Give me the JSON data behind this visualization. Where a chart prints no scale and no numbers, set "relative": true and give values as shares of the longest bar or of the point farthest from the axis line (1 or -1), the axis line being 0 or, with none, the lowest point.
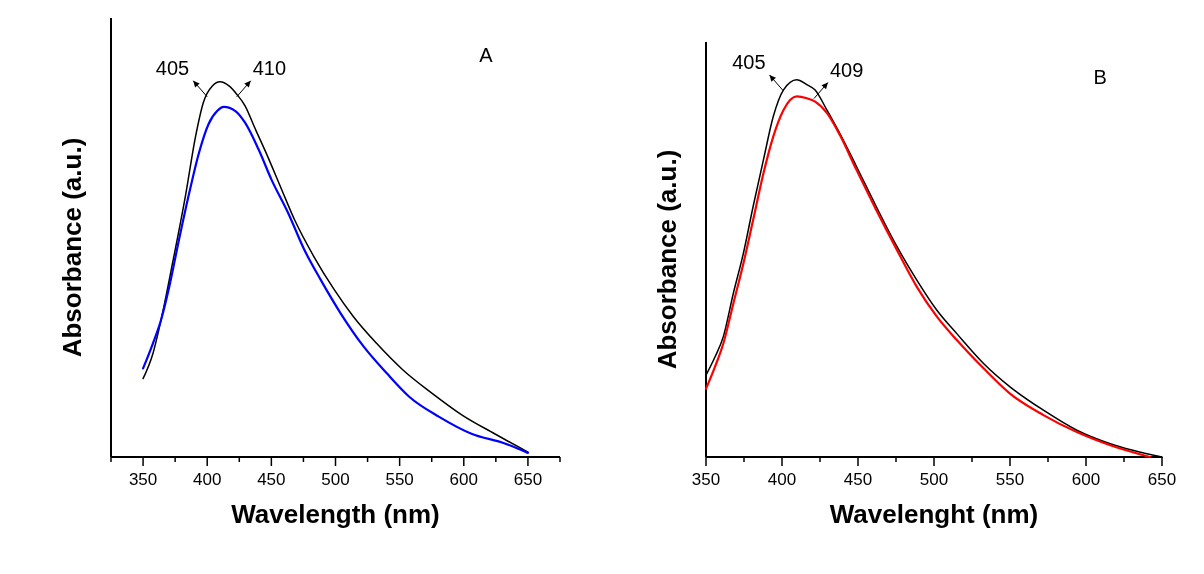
{
  "chart_data": [
    {
      "type": "line",
      "relative": true,
      "xlabel": "Wavelength (nm)",
      "ylabel": "Absorbance (a.u.)",
      "xlim": [
        325,
        675
      ],
      "xticks": [
        {
          "value": 325,
          "label": null
        },
        350,
        {
          "value": 375,
          "label": null
        },
        400,
        {
          "value": 425,
          "label": null
        },
        450,
        {
          "value": 475,
          "label": null
        },
        500,
        {
          "value": 525,
          "label": null
        },
        550,
        {
          "value": 575,
          "label": null
        },
        600,
        {
          "value": 625,
          "label": null
        },
        650,
        {
          "value": 675,
          "label": null
        }
      ],
      "marker": "none",
      "line_style": "solid",
      "annotations": [
        {
          "text": "405",
          "x": 400,
          "y": 0.96
        },
        {
          "text": "410",
          "x": 423,
          "y": 0.96
        },
        "A"
      ],
      "series": [
        {
          "color": "#000000",
          "x": [
            350,
            357.7,
            364,
            373,
            383,
            391,
            397,
            404,
            410,
            417,
            423,
            429.5,
            437,
            447,
            458,
            468,
            483,
            499,
            514,
            532,
            552.6,
            575.6,
            599,
            624,
            650
          ],
          "values": [
            0.209,
            0.276,
            0.365,
            0.517,
            0.695,
            0.856,
            0.945,
            0.989,
            1.0,
            0.989,
            0.967,
            0.936,
            0.878,
            0.802,
            0.713,
            0.633,
            0.535,
            0.446,
            0.374,
            0.303,
            0.232,
            0.169,
            0.111,
            0.062,
            0.013
          ]
        },
        {
          "color": "#0000ff",
          "x": [
            350,
            357.7,
            364,
            370.5,
            378,
            386,
            393.6,
            401,
            407.7,
            413,
            422,
            429.5,
            440,
            450,
            463,
            475.6,
            488.5,
            504,
            522,
            540,
            557.7,
            580.8,
            606,
            632,
            650
          ],
          "values": [
            0.236,
            0.303,
            0.365,
            0.455,
            0.579,
            0.704,
            0.811,
            0.887,
            0.922,
            0.933,
            0.922,
            0.891,
            0.82,
            0.74,
            0.651,
            0.553,
            0.472,
            0.383,
            0.294,
            0.223,
            0.16,
            0.107,
            0.062,
            0.036,
            0.011
          ]
        }
      ]
    },
    {
      "type": "line",
      "relative": true,
      "xlabel": "Wavelenght (nm)",
      "ylabel": "Absorbance (a.u.)",
      "xlim": [
        350,
        650
      ],
      "xticks": [
        350,
        {
          "value": 375,
          "label": null
        },
        400,
        {
          "value": 425,
          "label": null
        },
        450,
        {
          "value": 475,
          "label": null
        },
        500,
        {
          "value": 525,
          "label": null
        },
        550,
        {
          "value": 575,
          "label": null
        },
        600,
        {
          "value": 625,
          "label": null
        },
        650
      ],
      "marker": "none",
      "line_style": "solid",
      "annotations": [
        {
          "text": "405",
          "x": 401,
          "y": 0.97
        },
        {
          "text": "409",
          "x": 421,
          "y": 0.95
        },
        "B"
      ],
      "series": [
        {
          "color": "#000000",
          "x": [
            350,
            355.9,
            361.4,
            368,
            374.6,
            381,
            387.8,
            394.3,
            401,
            409.7,
            416.3,
            421.8,
            429.5,
            438,
            449,
            462,
            475.6,
            488.7,
            501.9,
            515,
            532.6,
            550,
            572,
            594,
            616,
            650
          ],
          "values": [
            0.217,
            0.265,
            0.319,
            0.434,
            0.54,
            0.664,
            0.788,
            0.903,
            0.973,
            1.0,
            0.987,
            0.973,
            0.92,
            0.858,
            0.77,
            0.664,
            0.558,
            0.469,
            0.389,
            0.327,
            0.248,
            0.186,
            0.124,
            0.071,
            0.035,
            0
          ]
        },
        {
          "color": "#ff0000",
          "x": [
            350,
            355.9,
            361.4,
            368,
            374.6,
            381,
            387.8,
            394.3,
            401,
            409.7,
            416.3,
            421.8,
            429.5,
            438,
            449,
            462,
            475.6,
            488.7,
            501.9,
            515,
            532.6,
            550,
            572,
            594,
            616,
            642
          ],
          "values": [
            0.181,
            0.239,
            0.301,
            0.407,
            0.513,
            0.628,
            0.752,
            0.85,
            0.92,
            0.956,
            0.951,
            0.942,
            0.912,
            0.854,
            0.761,
            0.655,
            0.549,
            0.451,
            0.372,
            0.31,
            0.235,
            0.168,
            0.111,
            0.066,
            0.031,
            0
          ]
        }
      ]
    }
  ]
}
